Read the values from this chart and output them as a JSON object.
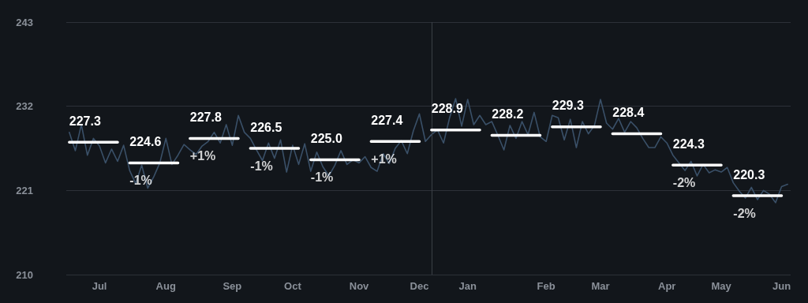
{
  "chart_data": {
    "type": "line",
    "categories": [
      null,
      null,
      null,
      null,
      null,
      "Jul",
      null,
      null,
      null,
      null,
      null,
      null,
      null,
      null,
      null,
      null,
      "Aug",
      null,
      null,
      null,
      null,
      null,
      null,
      null,
      null,
      null,
      null,
      "Sep",
      null,
      null,
      null,
      null,
      null,
      null,
      null,
      null,
      null,
      "Oct",
      null,
      null,
      null,
      null,
      null,
      null,
      null,
      null,
      null,
      null,
      "Nov",
      null,
      null,
      null,
      null,
      null,
      null,
      null,
      null,
      null,
      "Dec",
      null,
      null,
      null,
      null,
      null,
      null,
      null,
      "Jan",
      null,
      null,
      null,
      null,
      null,
      null,
      null,
      null,
      null,
      null,
      null,
      null,
      "Feb",
      null,
      null,
      null,
      null,
      null,
      null,
      null,
      null,
      "Mar",
      null,
      null,
      null,
      null,
      null,
      null,
      null,
      null,
      null,
      null,
      "Apr",
      null,
      null,
      null,
      null,
      null,
      null,
      null,
      null,
      "May",
      null,
      null,
      null,
      null,
      null,
      null,
      null,
      null,
      null,
      "Jun",
      null
    ],
    "ylim": [
      210,
      243
    ],
    "yticks": [
      210,
      221,
      232,
      243
    ],
    "grid": "y",
    "series": [
      {
        "color": "#3a5068",
        "values": [
          228.6,
          226.2,
          229.6,
          225.6,
          227.8,
          226.8,
          224.6,
          226.4,
          224.8,
          226.9,
          223.6,
          221.9,
          224.3,
          221.3,
          222.8,
          224.6,
          227.8,
          224.4,
          225.6,
          227.0,
          226.3,
          225.7,
          226.8,
          227.4,
          228.6,
          227.2,
          229.6,
          226.9,
          230.8,
          228.6,
          227.8,
          226.3,
          224.9,
          227.2,
          225.2,
          227.6,
          223.4,
          226.9,
          224.4,
          227.1,
          223.5,
          226.0,
          224.1,
          222.9,
          224.3,
          226.2,
          224.4,
          225.0,
          224.6,
          225.4,
          224.0,
          223.5,
          225.8,
          224.5,
          226.5,
          227.5,
          225.8,
          228.8,
          231.0,
          227.4,
          228.3,
          228.9,
          227.2,
          230.5,
          233.0,
          229.4,
          232.9,
          229.6,
          230.8,
          229.6,
          230.0,
          228.2,
          226.3,
          229.5,
          227.8,
          230.0,
          228.3,
          231.2,
          228.0,
          227.4,
          230.8,
          230.5,
          227.6,
          230.3,
          226.6,
          230.0,
          228.4,
          229.5,
          232.9,
          229.8,
          229.0,
          230.4,
          228.6,
          230.0,
          229.2,
          227.8,
          226.6,
          226.6,
          228.0,
          227.2,
          225.6,
          224.6,
          223.6,
          224.8,
          222.9,
          224.4,
          223.3,
          223.7,
          223.4,
          224.0,
          222.0,
          220.9,
          220.0,
          221.4,
          219.8,
          221.0,
          220.5,
          219.4,
          221.5,
          221.8
        ]
      },
      {
        "color": "#ffffff",
        "values": [
          227.3,
          227.3,
          227.3,
          227.3,
          227.3,
          227.3,
          227.3,
          227.3,
          227.3,
          null,
          224.6,
          224.6,
          224.6,
          224.6,
          224.6,
          224.6,
          224.6,
          224.6,
          224.6,
          null,
          227.8,
          227.8,
          227.8,
          227.8,
          227.8,
          227.8,
          227.8,
          227.8,
          227.8,
          null,
          226.5,
          226.5,
          226.5,
          226.5,
          226.5,
          226.5,
          226.5,
          226.5,
          226.5,
          null,
          225.0,
          225.0,
          225.0,
          225.0,
          225.0,
          225.0,
          225.0,
          225.0,
          225.0,
          null,
          227.4,
          227.4,
          227.4,
          227.4,
          227.4,
          227.4,
          227.4,
          227.4,
          227.4,
          null,
          228.9,
          228.9,
          228.9,
          228.9,
          228.9,
          228.9,
          228.9,
          228.9,
          228.9,
          null,
          228.2,
          228.2,
          228.2,
          228.2,
          228.2,
          228.2,
          228.2,
          228.2,
          228.2,
          null,
          229.3,
          229.3,
          229.3,
          229.3,
          229.3,
          229.3,
          229.3,
          229.3,
          229.3,
          null,
          228.4,
          228.4,
          228.4,
          228.4,
          228.4,
          228.4,
          228.4,
          228.4,
          228.4,
          null,
          224.3,
          224.3,
          224.3,
          224.3,
          224.3,
          224.3,
          224.3,
          224.3,
          224.3,
          null,
          220.3,
          220.3,
          220.3,
          220.3,
          220.3,
          220.3,
          220.3,
          220.3,
          220.3,
          null
        ],
        "value_labels": [
          "227.3",
          null,
          null,
          null,
          null,
          null,
          null,
          null,
          null,
          null,
          "224.6",
          null,
          null,
          null,
          null,
          null,
          null,
          null,
          null,
          null,
          "227.8",
          null,
          null,
          null,
          null,
          null,
          null,
          null,
          null,
          null,
          "226.5",
          null,
          null,
          null,
          null,
          null,
          null,
          null,
          null,
          null,
          "225.0",
          null,
          null,
          null,
          null,
          null,
          null,
          null,
          null,
          null,
          "227.4",
          null,
          null,
          null,
          null,
          null,
          null,
          null,
          null,
          null,
          "228.9",
          null,
          null,
          null,
          null,
          null,
          null,
          null,
          null,
          null,
          "228.2",
          null,
          null,
          null,
          null,
          null,
          null,
          null,
          null,
          null,
          "229.3",
          null,
          null,
          null,
          null,
          null,
          null,
          null,
          null,
          null,
          "228.4",
          null,
          null,
          null,
          null,
          null,
          null,
          null,
          null,
          null,
          "224.3",
          null,
          null,
          null,
          null,
          null,
          null,
          null,
          null,
          null,
          "220.3",
          null,
          null,
          null,
          null,
          null,
          null,
          null,
          null,
          null
        ]
      }
    ],
    "annotations": [
      {
        "text": "-1%",
        "x": "Aug",
        "y": 224.6
      },
      {
        "text": "+1%",
        "x": "Sep",
        "y": 227.8
      },
      {
        "text": "-1%",
        "x": "Oct",
        "y": 226.5
      },
      {
        "text": "-1%",
        "x": "Nov",
        "y": 225.0
      },
      {
        "text": "+1%",
        "x": "Dec",
        "y": 227.4
      },
      {
        "text": "-2%",
        "x": "May",
        "y": 224.3
      },
      {
        "text": "-2%",
        "x": "Jun",
        "y": 220.3
      }
    ]
  }
}
